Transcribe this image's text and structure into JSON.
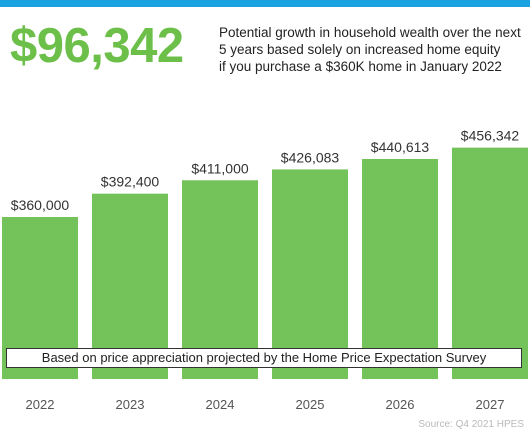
{
  "headline": {
    "value": "$96,342",
    "description_lines": [
      "Potential growth in household wealth over the next",
      "5 years based solely on increased home equity",
      "if you purchase a $360K home in January 2022"
    ]
  },
  "footnote": "Based on price appreciation projected by the Home Price Expectation Survey",
  "source": "Source: Q4 2021 HPES",
  "colors": {
    "bar": "#74c25a",
    "accent_bar": "#1aa3e0",
    "headline": "#6cc04a"
  },
  "chart_data": {
    "type": "bar",
    "title": "",
    "xlabel": "",
    "ylabel": "",
    "categories": [
      "2022",
      "2023",
      "2024",
      "2025",
      "2026",
      "2027"
    ],
    "values": [
      360000,
      392400,
      411000,
      426083,
      440613,
      456342
    ],
    "data_labels": [
      "$360,000",
      "$392,400",
      "$411,000",
      "$426,083",
      "$440,613",
      "$456,342"
    ],
    "ylim": [
      135000,
      470000
    ],
    "grid": false,
    "legend": "none"
  }
}
